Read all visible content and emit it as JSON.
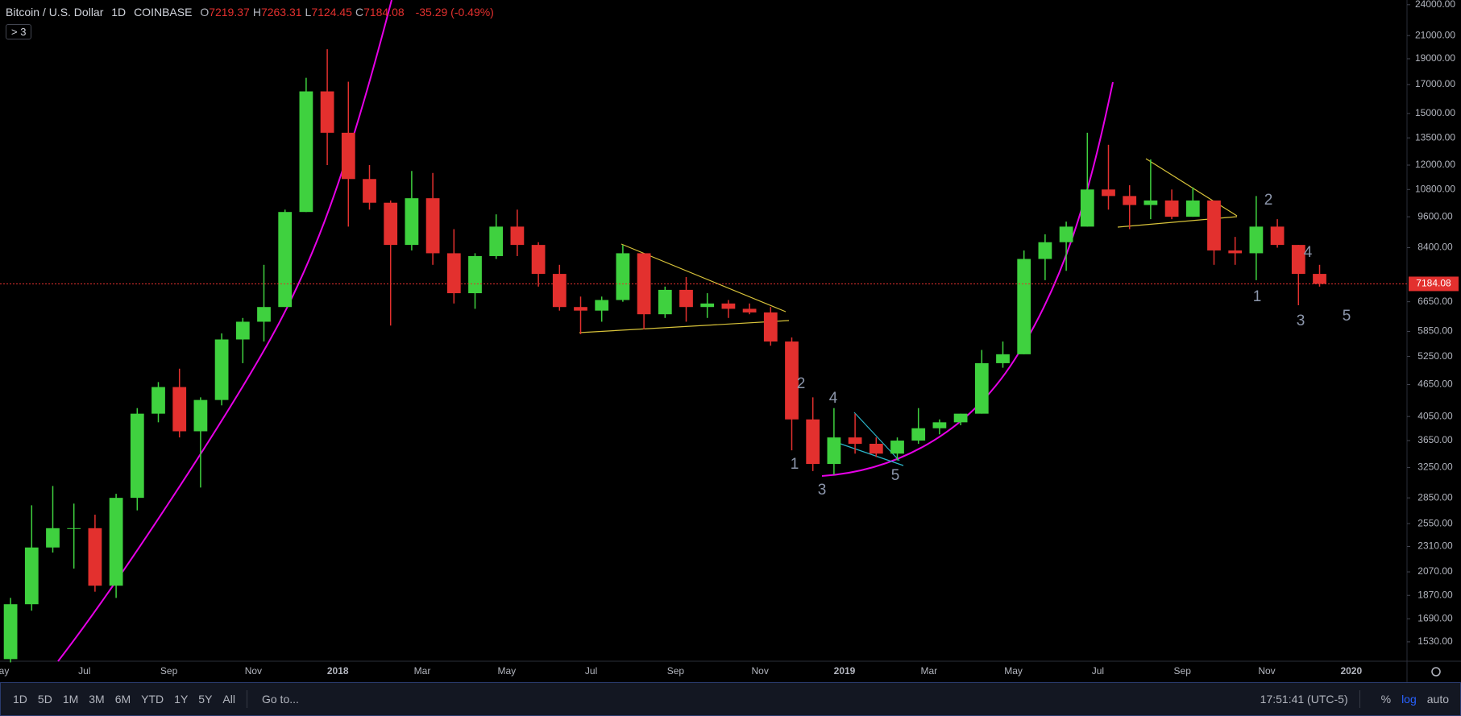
{
  "header": {
    "symbol": "Bitcoin / U.S. Dollar",
    "interval": "1D",
    "exchange": "COINBASE",
    "ohlc": [
      {
        "key": "O",
        "value": "7219.37"
      },
      {
        "key": "H",
        "value": "7263.31"
      },
      {
        "key": "L",
        "value": "7124.45"
      },
      {
        "key": "C",
        "value": "7184.08"
      }
    ],
    "change": "-35.29 (-0.49%)",
    "legend_toggle": "3"
  },
  "toolbar": {
    "ranges": [
      "1D",
      "5D",
      "1M",
      "3M",
      "6M",
      "YTD",
      "1Y",
      "5Y",
      "All"
    ],
    "goto": "Go to...",
    "clock": "17:51:41 (UTC-5)",
    "options": [
      "%",
      "log",
      "auto"
    ]
  },
  "chart_data": {
    "type": "candlestick",
    "log_scale": true,
    "grid": false,
    "colors": {
      "up": "#3fd13f",
      "down": "#e3302e"
    },
    "categories": [
      "May",
      null,
      null,
      null,
      "Jul",
      null,
      null,
      null,
      "Sep",
      null,
      null,
      null,
      "Nov",
      null,
      null,
      null,
      "2018",
      null,
      null,
      null,
      "Mar",
      null,
      null,
      null,
      "May",
      null,
      null,
      null,
      "Jul",
      null,
      null,
      null,
      "Sep",
      null,
      null,
      null,
      "Nov",
      null,
      null,
      null,
      "2019",
      null,
      null,
      null,
      "Mar",
      null,
      null,
      null,
      "May",
      null,
      null,
      null,
      "Jul",
      null,
      null,
      null,
      "Sep",
      null,
      null,
      null,
      "Nov",
      null,
      null,
      null,
      "2020"
    ],
    "open": [
      1420,
      1800,
      2300,
      2500,
      2500,
      1950,
      2850,
      4100,
      4600,
      3800,
      4350,
      5650,
      6100,
      6500,
      9800,
      16500,
      13800,
      11300,
      10200,
      8500,
      10400,
      8200,
      6900,
      8100,
      9200,
      8500,
      7500,
      6500,
      6400,
      6700,
      8200,
      6300,
      7000,
      6500,
      6600,
      6450,
      6350,
      5600,
      4000,
      3300,
      3700,
      3600,
      3450,
      3650,
      3850,
      3950,
      4100,
      5100,
      5300,
      8000,
      8600,
      9200,
      10800,
      10500,
      10100,
      10300,
      9600,
      10300,
      8300,
      8200,
      9200,
      8500,
      7500,
      null,
      null
    ],
    "high": [
      1850,
      2760,
      3000,
      2780,
      2650,
      2900,
      4200,
      4700,
      4980,
      4400,
      5800,
      6200,
      7800,
      9900,
      17500,
      19800,
      17200,
      12000,
      10300,
      11700,
      11600,
      9100,
      8200,
      9700,
      9900,
      8600,
      7800,
      6800,
      6800,
      8500,
      8200,
      7100,
      7400,
      6900,
      6700,
      6600,
      6500,
      5700,
      4400,
      4200,
      4100,
      3700,
      3700,
      4200,
      4000,
      4100,
      5400,
      5600,
      8300,
      8900,
      9400,
      13800,
      13100,
      11000,
      12300,
      10800,
      10900,
      10300,
      8800,
      10500,
      9500,
      8500,
      7800,
      null,
      null
    ],
    "low": [
      1400,
      1750,
      2250,
      2100,
      1900,
      1850,
      2700,
      3950,
      3700,
      2980,
      4250,
      5100,
      5600,
      6500,
      9800,
      12000,
      9200,
      9900,
      6000,
      8300,
      7800,
      6600,
      6450,
      8000,
      8100,
      7100,
      6400,
      5780,
      6100,
      6650,
      5900,
      6200,
      6100,
      6200,
      6200,
      6300,
      5500,
      3500,
      3200,
      3150,
      3450,
      3400,
      3350,
      3600,
      3750,
      3900,
      4100,
      5000,
      5300,
      7300,
      7600,
      9200,
      9900,
      9100,
      9500,
      9500,
      9600,
      7800,
      7800,
      7300,
      8400,
      6550,
      7100,
      null,
      null
    ],
    "close": [
      1800,
      2300,
      2500,
      2500,
      1950,
      2850,
      4100,
      4600,
      3800,
      4350,
      5650,
      6100,
      6500,
      9800,
      16500,
      13800,
      11300,
      10200,
      8500,
      10400,
      8200,
      6900,
      8100,
      9200,
      8500,
      7500,
      6500,
      6400,
      6700,
      8200,
      6300,
      7000,
      6500,
      6600,
      6450,
      6350,
      5600,
      4000,
      3300,
      3700,
      3600,
      3450,
      3650,
      3850,
      3950,
      4100,
      5100,
      5300,
      8000,
      8600,
      9200,
      10800,
      10500,
      10100,
      10300,
      9600,
      10300,
      8300,
      8200,
      9200,
      8500,
      7500,
      7184.08,
      null,
      null
    ],
    "ylim": [
      1407,
      24490
    ],
    "yticks": [
      {
        "value": 24000,
        "label": "24000.00"
      },
      {
        "value": 21000,
        "label": "21000.00"
      },
      {
        "value": 19000,
        "label": "19000.00"
      },
      {
        "value": 17000,
        "label": "17000.00"
      },
      {
        "value": 15000,
        "label": "15000.00"
      },
      {
        "value": 13500,
        "label": "13500.00"
      },
      {
        "value": 12000,
        "label": "12000.00"
      },
      {
        "value": 10800,
        "label": "10800.00"
      },
      {
        "value": 9600,
        "label": "9600.00"
      },
      {
        "value": 8400,
        "label": "8400.00"
      },
      {
        "value": 6650,
        "label": "6650.00"
      },
      {
        "value": 5850,
        "label": "5850.00"
      },
      {
        "value": 5250,
        "label": "5250.00"
      },
      {
        "value": 4650,
        "label": "4650.00"
      },
      {
        "value": 4050,
        "label": "4050.00"
      },
      {
        "value": 3650,
        "label": "3650.00"
      },
      {
        "value": 3250,
        "label": "3250.00"
      },
      {
        "value": 2850,
        "label": "2850.00"
      },
      {
        "value": 2550,
        "label": "2550.00"
      },
      {
        "value": 2310,
        "label": "2310.00"
      },
      {
        "value": 2070,
        "label": "2070.00"
      },
      {
        "value": 1870,
        "label": "1870.00"
      },
      {
        "value": 1690,
        "label": "1690.00"
      },
      {
        "value": 1530,
        "label": "1530.00"
      }
    ],
    "last_price": {
      "value": 7184.08,
      "label": "7184.08"
    },
    "annotations": [
      "1",
      "2",
      "3",
      "4",
      "5",
      "1",
      "2",
      "3",
      "4",
      "5"
    ]
  }
}
